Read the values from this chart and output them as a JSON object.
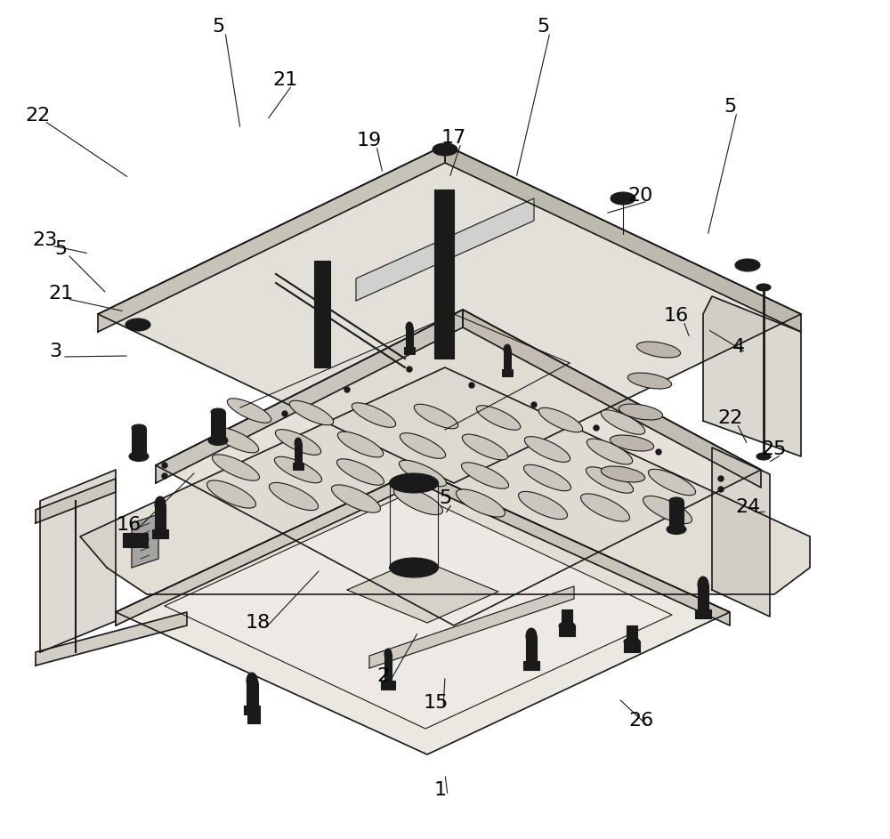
{
  "bg_color": "#ffffff",
  "line_color": "#1a1a1a",
  "label_color": "#000000",
  "figsize": [
    10.0,
    9.43
  ],
  "dpi": 100,
  "label_data": [
    [
      "22",
      42,
      813,
      100,
      793,
      145,
      743
    ],
    [
      "5",
      245,
      913,
      255,
      895,
      270,
      798
    ],
    [
      "21",
      320,
      853,
      310,
      838,
      300,
      808
    ],
    [
      "19",
      415,
      785,
      430,
      768,
      430,
      748
    ],
    [
      "17",
      510,
      788,
      505,
      771,
      505,
      743
    ],
    [
      "5",
      610,
      913,
      590,
      895,
      580,
      743
    ],
    [
      "20",
      720,
      723,
      700,
      708,
      680,
      703
    ],
    [
      "5",
      820,
      823,
      800,
      795,
      795,
      678
    ],
    [
      "23",
      50,
      673,
      82,
      663,
      100,
      658
    ],
    [
      "5",
      68,
      663,
      88,
      645,
      120,
      613
    ],
    [
      "21",
      68,
      613,
      95,
      601,
      140,
      593
    ],
    [
      "3",
      62,
      548,
      90,
      548,
      145,
      543
    ],
    [
      "16",
      145,
      353,
      175,
      373,
      220,
      413
    ],
    [
      "18",
      290,
      243,
      320,
      263,
      360,
      303
    ],
    [
      "15",
      490,
      153,
      500,
      173,
      500,
      183
    ],
    [
      "2",
      430,
      183,
      455,
      203,
      470,
      233
    ],
    [
      "4",
      830,
      553,
      805,
      563,
      795,
      573
    ],
    [
      "16",
      760,
      588,
      775,
      583,
      775,
      563
    ],
    [
      "22",
      820,
      473,
      835,
      463,
      840,
      443
    ],
    [
      "25",
      870,
      438,
      870,
      423,
      863,
      423
    ],
    [
      "24",
      840,
      373,
      845,
      368,
      862,
      368
    ],
    [
      "5",
      500,
      383,
      505,
      373,
      500,
      365
    ],
    [
      "26",
      720,
      133,
      710,
      143,
      695,
      158
    ],
    [
      "1",
      495,
      55,
      500,
      63,
      500,
      73
    ]
  ]
}
